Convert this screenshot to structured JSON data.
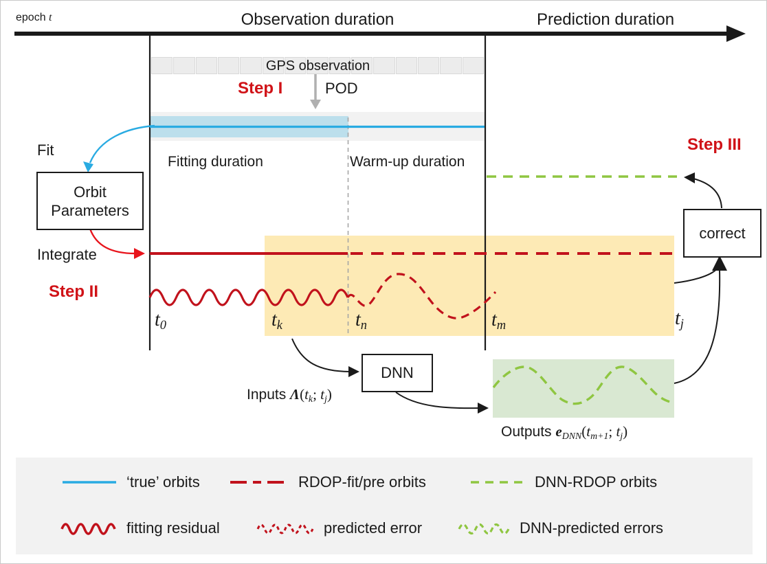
{
  "colors": {
    "step_red": "#d01217",
    "line_red": "#c1121c",
    "arrow_red": "#e8141c",
    "cyan": "#29abe2",
    "light_blue": "#bcdfec",
    "green": "#8fc641",
    "light_green": "#d9e8d2",
    "yellow": "#fdeab5",
    "panel_gray": "#f2f2f2",
    "cell_gray": "#ececec",
    "cell_border": "#d9d9d9",
    "dash_gray": "#a6a6a6",
    "pod_gray": "#b0b0b0"
  },
  "axis": {
    "epoch_label": [
      [
        "epoch ",
        "n"
      ],
      [
        "t",
        "i"
      ]
    ],
    "observation_label": "Observation duration",
    "prediction_label": "Prediction duration"
  },
  "gps": {
    "label": "GPS observation",
    "cell_count": 15
  },
  "steps": {
    "step1": "Step I",
    "step2": "Step II",
    "step3": "Step III"
  },
  "pod_label": "POD",
  "durations": {
    "fitting": "Fitting duration",
    "warmup": "Warm-up duration"
  },
  "fit_label": "Fit",
  "integrate_label": "Integrate",
  "orbit_box": {
    "line1": "Orbit",
    "line2": "Parameters"
  },
  "dnn_box_label": "DNN",
  "correct_box_label": "correct",
  "math": {
    "t0": [
      [
        "t",
        "i"
      ],
      [
        "0",
        "s"
      ]
    ],
    "tk": [
      [
        "t",
        "i"
      ],
      [
        "k",
        "s"
      ]
    ],
    "tn": [
      [
        "t",
        "i"
      ],
      [
        "n",
        "s"
      ]
    ],
    "tm": [
      [
        "t",
        "i"
      ],
      [
        "m",
        "s"
      ]
    ],
    "tj": [
      [
        "t",
        "i"
      ],
      [
        "j",
        "s"
      ]
    ],
    "inputs": [
      [
        "Inputs ",
        "n"
      ],
      [
        "Λ",
        "b"
      ],
      [
        "(",
        "r"
      ],
      [
        "t",
        "i"
      ],
      [
        "k",
        "s"
      ],
      [
        "; ",
        "r"
      ],
      [
        "t",
        "i"
      ],
      [
        "j",
        "s"
      ],
      [
        ")",
        "r"
      ]
    ],
    "outputs": [
      [
        "Outputs ",
        "n"
      ],
      [
        "e",
        "b"
      ],
      [
        "DNN",
        "s"
      ],
      [
        "(",
        "r"
      ],
      [
        "t",
        "i"
      ],
      [
        "m+1",
        "s"
      ],
      [
        "; ",
        "r"
      ],
      [
        "t",
        "i"
      ],
      [
        "j",
        "s"
      ],
      [
        ")",
        "r"
      ]
    ]
  },
  "legend": {
    "items": [
      {
        "type": "line-solid",
        "color": "cyan",
        "label": "‘true’ orbits"
      },
      {
        "type": "line-dashed",
        "color": "red",
        "label": "RDOP-fit/pre orbits"
      },
      {
        "type": "line-dashed",
        "color": "green",
        "label": "DNN-RDOP orbits"
      },
      {
        "type": "wave-solid",
        "color": "red",
        "label": "fitting residual"
      },
      {
        "type": "wave-dashed",
        "color": "red",
        "label": "predicted error"
      },
      {
        "type": "wave-dashed",
        "color": "green",
        "label": "DNN-predicted errors"
      }
    ]
  }
}
